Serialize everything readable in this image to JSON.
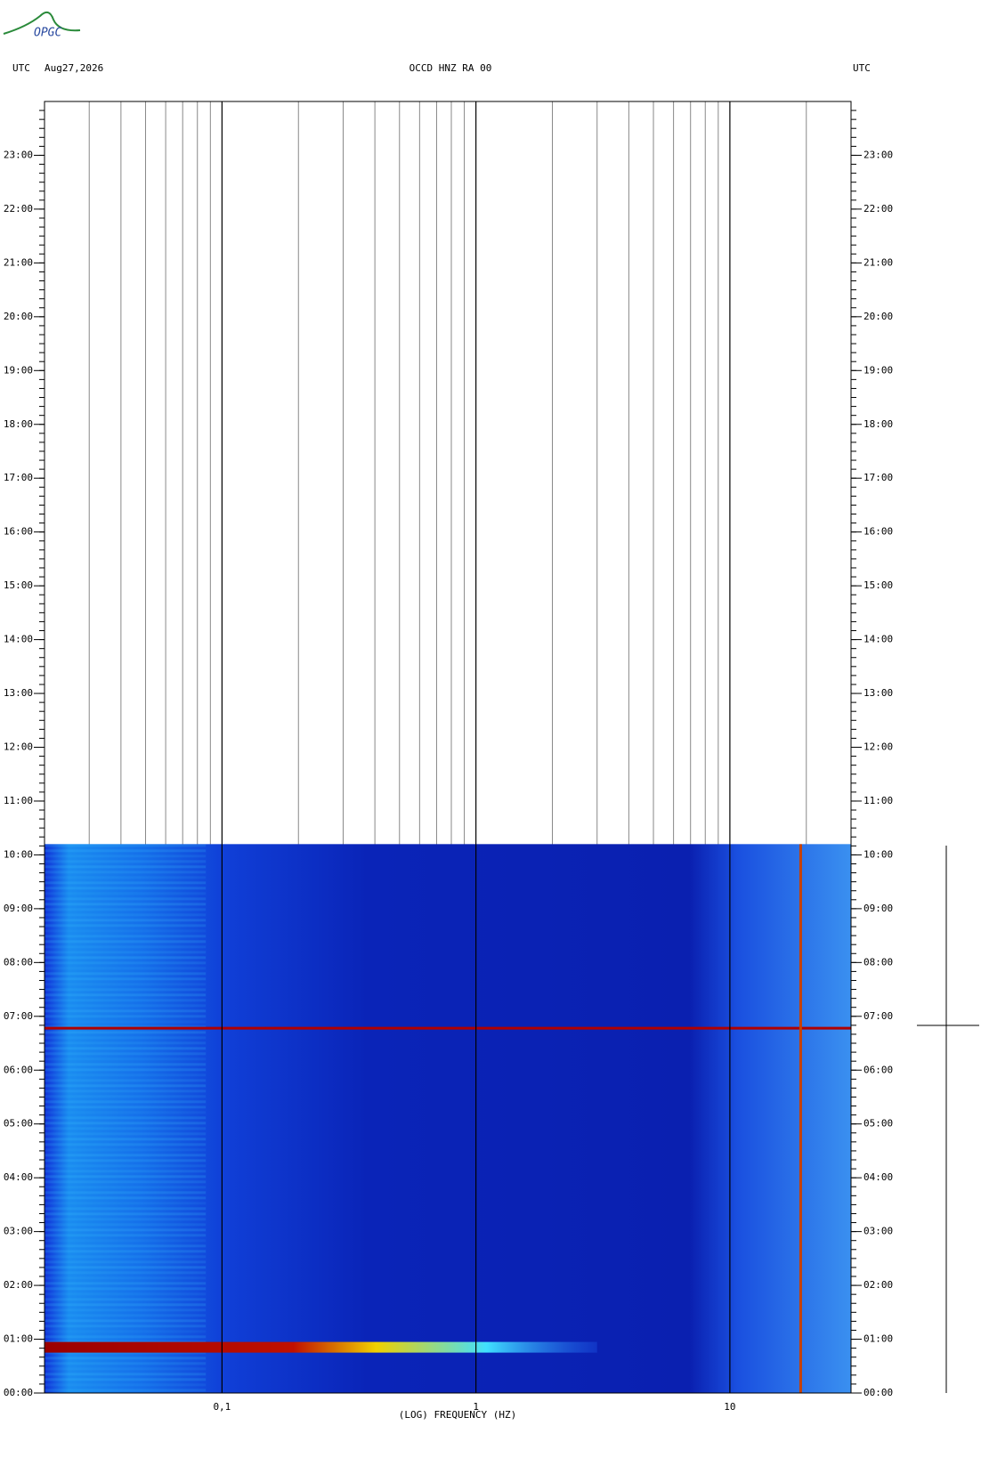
{
  "logo": "OPGC",
  "chart_data": {
    "type": "spectrogram",
    "title": "OCCD HNZ RA 00",
    "date": "Aug27,2026",
    "timezone": "UTC",
    "xlabel": "(LOG) FREQUENCY (HZ)",
    "xscale": "log",
    "xlim": [
      0.02,
      30
    ],
    "xticks": [
      {
        "value": 0.1,
        "label": "0,1"
      },
      1,
      10
    ],
    "ylim": [
      0,
      24
    ],
    "yticks": [
      {
        "value": 0,
        "label": "00:00"
      },
      {
        "value": 1,
        "label": "01:00"
      },
      {
        "value": 2,
        "label": "02:00"
      },
      {
        "value": 3,
        "label": "03:00"
      },
      {
        "value": 4,
        "label": "04:00"
      },
      {
        "value": 5,
        "label": "05:00"
      },
      {
        "value": 6,
        "label": "06:00"
      },
      {
        "value": 7,
        "label": "07:00"
      },
      {
        "value": 8,
        "label": "08:00"
      },
      {
        "value": 9,
        "label": "09:00"
      },
      {
        "value": 10,
        "label": "10:00"
      },
      {
        "value": 11,
        "label": "11:00"
      },
      {
        "value": 12,
        "label": "12:00"
      },
      {
        "value": 13,
        "label": "13:00"
      },
      {
        "value": 14,
        "label": "14:00"
      },
      {
        "value": 15,
        "label": "15:00"
      },
      {
        "value": 16,
        "label": "16:00"
      },
      {
        "value": 17,
        "label": "17:00"
      },
      {
        "value": 18,
        "label": "18:00"
      },
      {
        "value": 19,
        "label": "19:00"
      },
      {
        "value": 20,
        "label": "20:00"
      },
      {
        "value": 21,
        "label": "21:00"
      },
      {
        "value": 22,
        "label": "22:00"
      },
      {
        "value": 23,
        "label": "23:00"
      }
    ],
    "data_end": 10.2,
    "horizontal_lines": [
      {
        "time": 6.78,
        "color": "#b00000"
      }
    ],
    "vertical_lines": [
      {
        "frequency": 19,
        "color": "#c84000"
      }
    ],
    "events": [
      {
        "time": 0.85,
        "max_frequency": 3
      }
    ]
  }
}
